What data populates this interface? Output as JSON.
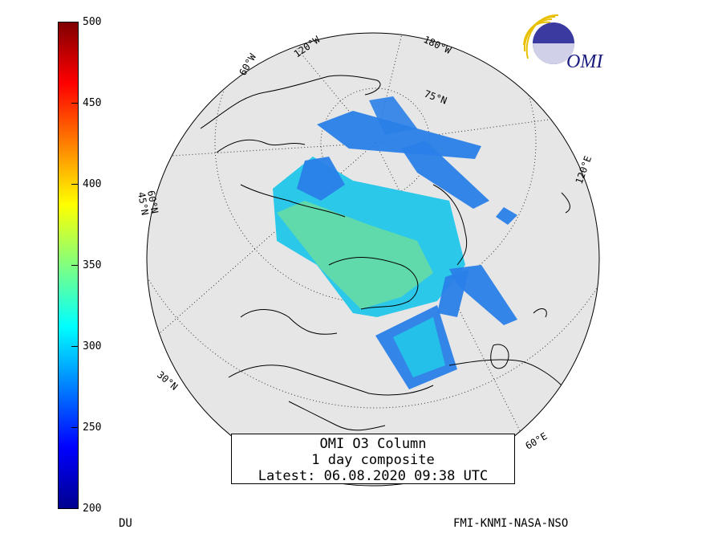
{
  "colorbar": {
    "ticks": [
      "500",
      "450",
      "400",
      "350",
      "300",
      "250",
      "200"
    ],
    "unit": "DU",
    "colors": [
      "#00008f",
      "#0000ff",
      "#0080ff",
      "#00ffff",
      "#80ff80",
      "#ffff00",
      "#ff8000",
      "#ff0000",
      "#800000"
    ]
  },
  "title_box": {
    "line1": "OMI O3 Column",
    "line2": "1 day composite",
    "line3": "Latest: 06.08.2020 09:38 UTC"
  },
  "credit": "FMI-KNMI-NASA-NSO",
  "logo": {
    "text": "OMI",
    "icon": "omi-logo-icon"
  },
  "map_labels": {
    "lon_120w": "120°W",
    "lon_180w": "180°W",
    "lon_60w": "60°W",
    "lat_75n": "75°N",
    "lat_60n": "60°N",
    "lat_45n": "45°N",
    "lat_30n": "30°N",
    "lon_120e": "120°E",
    "lon_60e": "60°E"
  },
  "map_colors": {
    "globe": "#e6e6e6",
    "swath_blue": "#2a7fe8",
    "swath_cyan": "#22c6ea",
    "swath_green": "#7fe07a"
  }
}
